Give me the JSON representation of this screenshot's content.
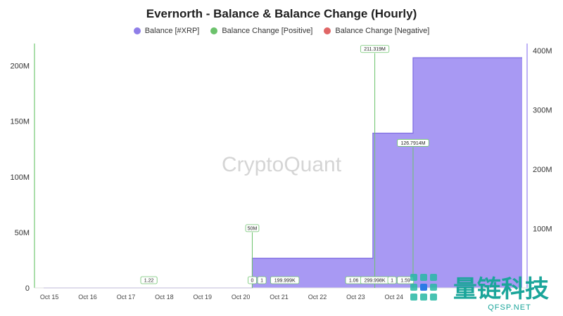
{
  "chart_data": {
    "type": "area",
    "title": "Evernorth - Balance & Balance Change (Hourly)",
    "legend": [
      {
        "name": "Balance [#XRP]",
        "color": "#8f7ee8"
      },
      {
        "name": "Balance Change [Positive]",
        "color": "#6cc26c"
      },
      {
        "name": "Balance Change [Negative]",
        "color": "#e06666"
      }
    ],
    "x_start": "Oct 15",
    "x_end": "Oct 27",
    "x_ticks": [
      "Oct 15",
      "Oct 16",
      "Oct 17",
      "Oct 18",
      "Oct 19",
      "Oct 20",
      "Oct 21",
      "Oct 22",
      "Oct 23",
      "Oct 24"
    ],
    "y_left_ticks": [
      "0",
      "50M",
      "100M",
      "150M",
      "200M"
    ],
    "y_left_range": [
      0,
      220000000
    ],
    "y_right_ticks": [
      "100M",
      "200M",
      "300M",
      "400M"
    ],
    "y_right_range": [
      0,
      412000000
    ],
    "balance_series": {
      "name": "Balance [#XRP]",
      "points": [
        {
          "x": 0.0,
          "y": 0
        },
        {
          "x": 5.45,
          "y": 0
        },
        {
          "x": 5.45,
          "y": 50000000
        },
        {
          "x": 8.6,
          "y": 50000000
        },
        {
          "x": 8.6,
          "y": 261000000
        },
        {
          "x": 9.65,
          "y": 261000000
        },
        {
          "x": 9.65,
          "y": 388000000
        },
        {
          "x": 12.5,
          "y": 388000000
        }
      ]
    },
    "positive_changes": [
      {
        "x": 2.75,
        "value": 1.22,
        "label": "1.22"
      },
      {
        "x": 5.45,
        "value": 50000000,
        "label": "50M"
      },
      {
        "x": 5.45,
        "value": 0,
        "label": "0"
      },
      {
        "x": 5.7,
        "value": 1,
        "label": "1"
      },
      {
        "x": 6.3,
        "value": 199999,
        "label": "199.999K"
      },
      {
        "x": 8.1,
        "value": 1.06,
        "label": "1.06"
      },
      {
        "x": 8.65,
        "value": 211319000,
        "label": "211.319M"
      },
      {
        "x": 8.65,
        "value": 299998,
        "label": "299.998K"
      },
      {
        "x": 9.1,
        "value": 1,
        "label": "1"
      },
      {
        "x": 9.45,
        "value": 1.59,
        "label": "1.59"
      },
      {
        "x": 9.65,
        "value": 126791400,
        "label": "126.7914M"
      }
    ],
    "watermark": "CryptoQuant",
    "badge": {
      "text": "量链科技",
      "sub": "QFSP.NET"
    }
  }
}
